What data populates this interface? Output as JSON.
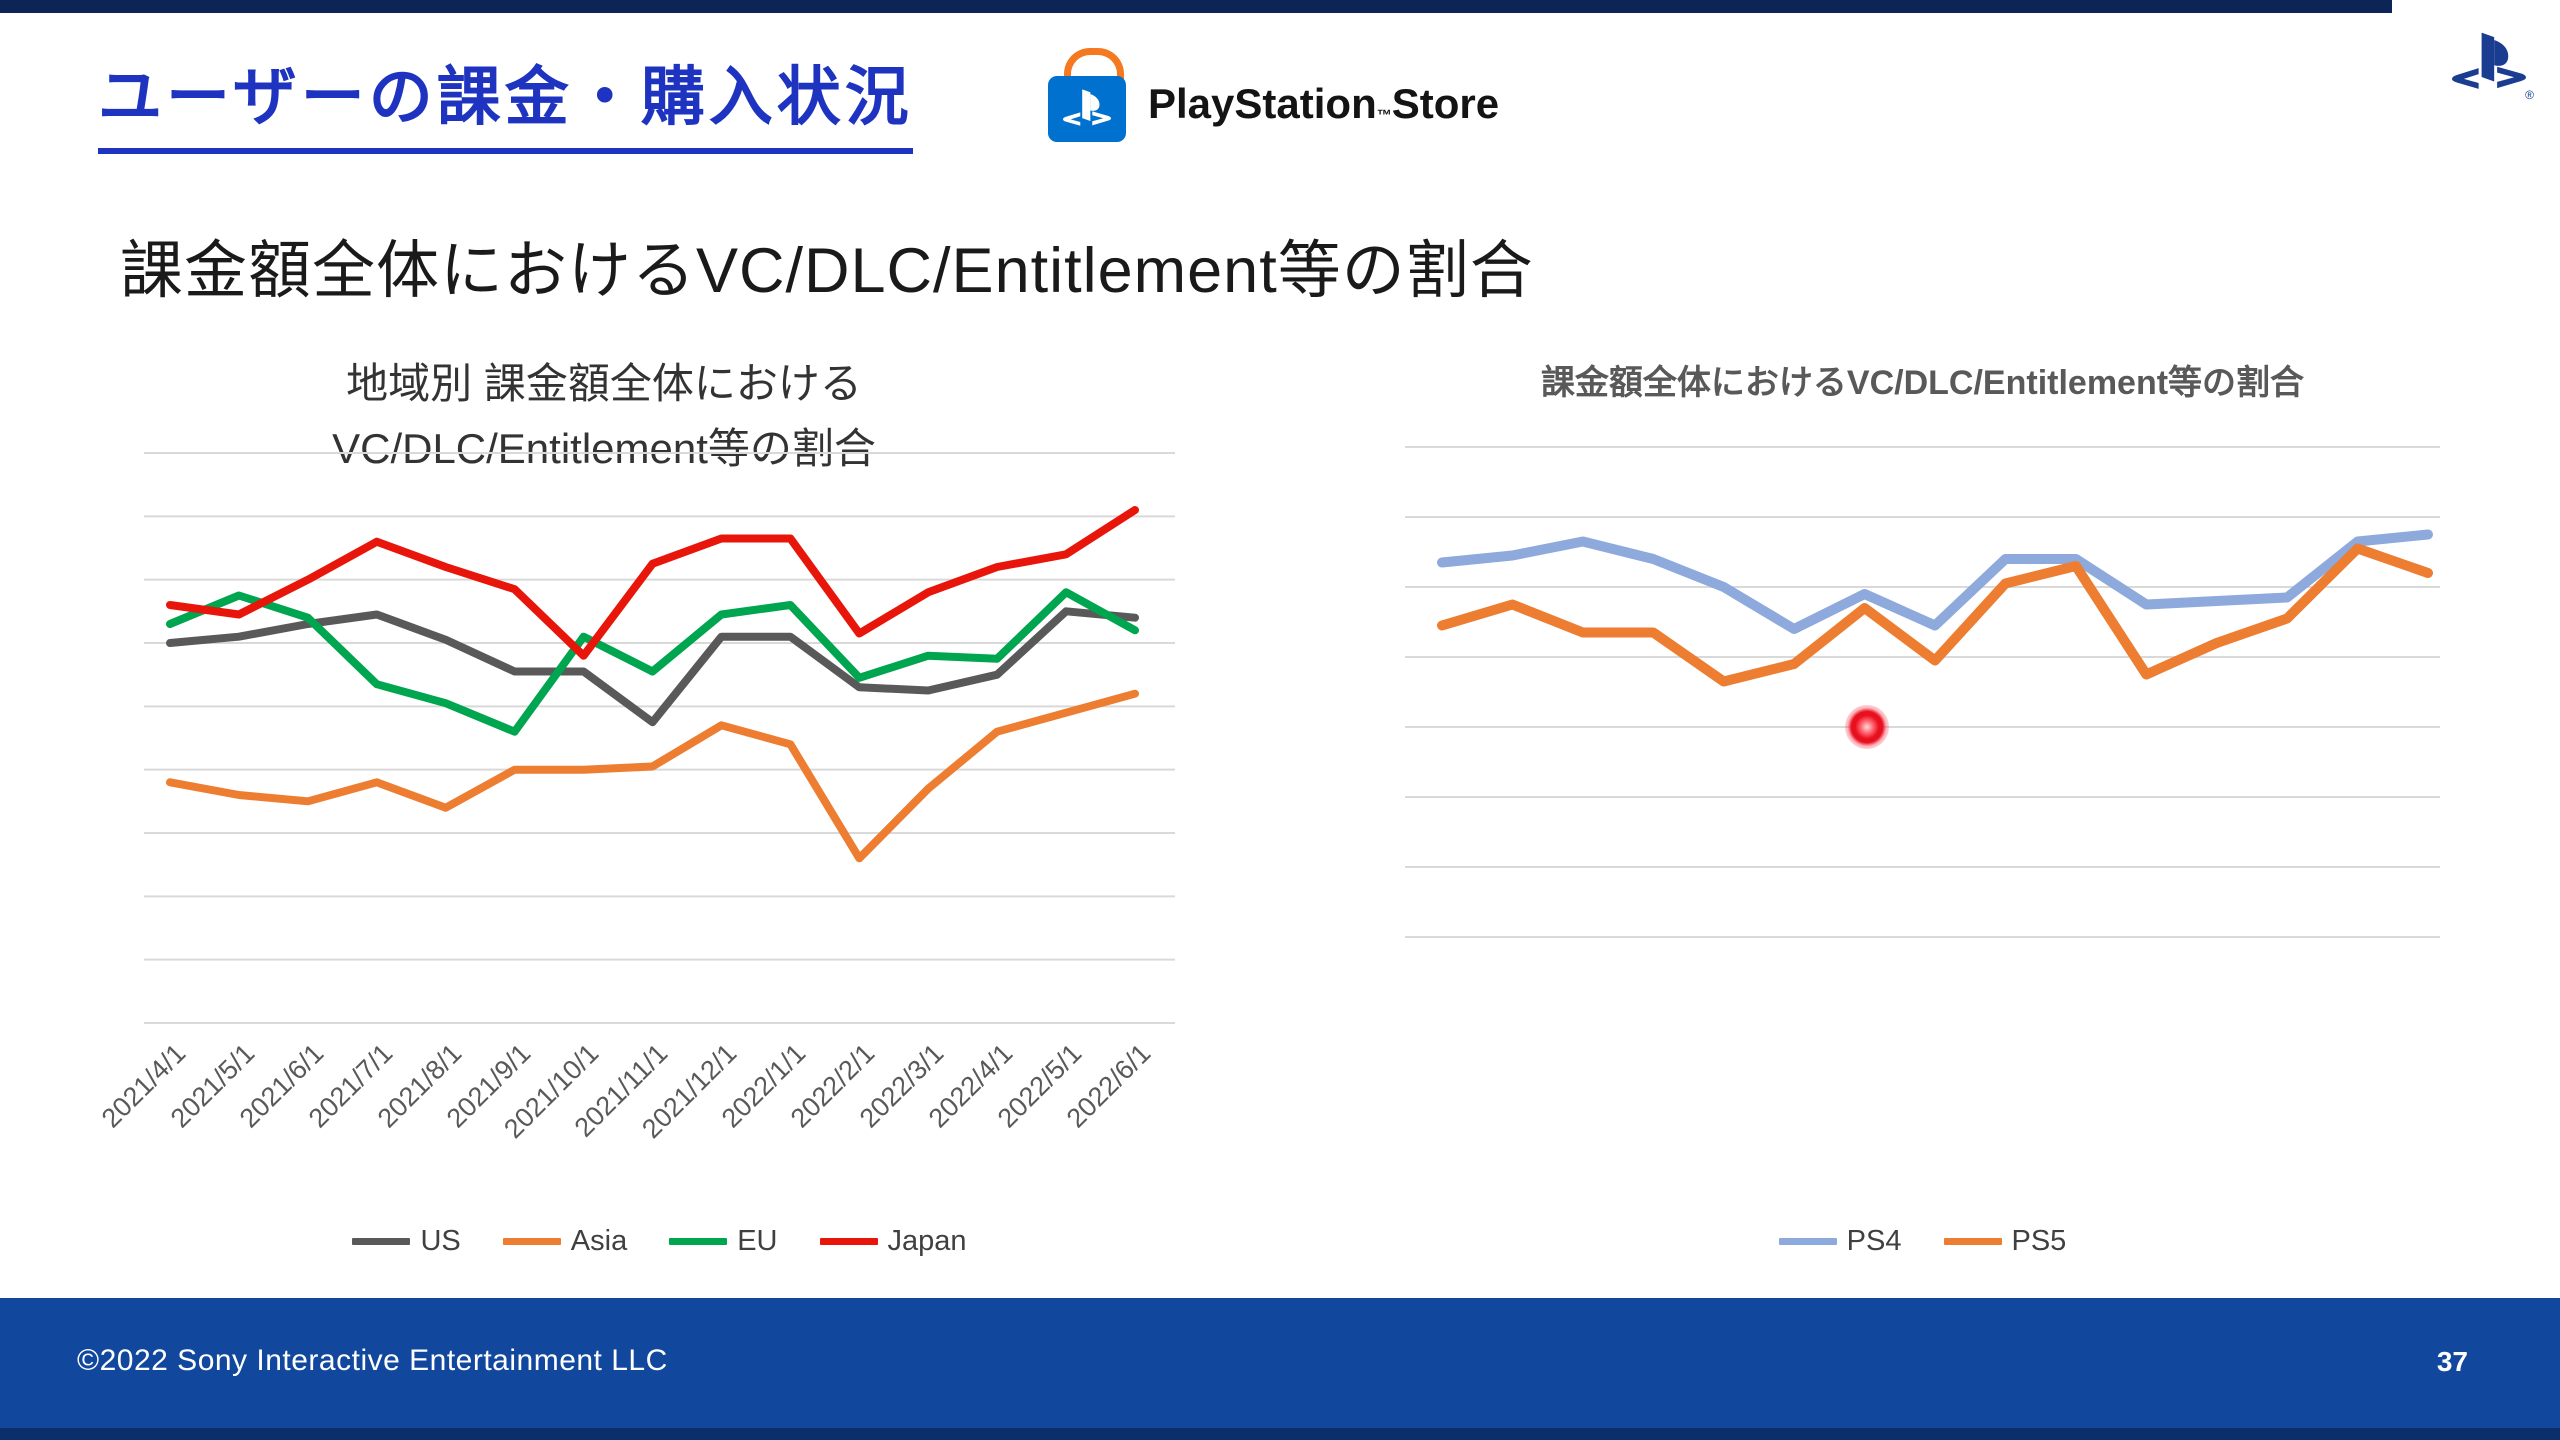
{
  "slide": {
    "title": "ユーザーの課金・購入状況",
    "heading": "課金額全体におけるVC/DLC/Entitlement等の割合",
    "store_logo": {
      "name": "PlayStation",
      "tm": "™",
      "suffix": "Store"
    }
  },
  "footer": {
    "copyright": "©2022 Sony Interactive Entertainment LLC",
    "page_number": "37"
  },
  "colors": {
    "title_blue": "#1e34c0",
    "footer_blue": "#11489d",
    "ps_navy": "#1b3d91",
    "store_bag_blue": "#0071ce",
    "store_handle_orange": "#f47920",
    "grid": "#d9d9d9",
    "laser_red": "#e8101f"
  },
  "chart_data": [
    {
      "type": "line",
      "title": "地域別 課金額全体における\nVC/DLC/Entitlement等の割合",
      "x_labels": [
        "2021/4/1",
        "2021/5/1",
        "2021/6/1",
        "2021/7/1",
        "2021/8/1",
        "2021/9/1",
        "2021/10/1",
        "2021/11/1",
        "2021/12/1",
        "2022/1/1",
        "2022/2/1",
        "2022/3/1",
        "2022/4/1",
        "2022/5/1",
        "2022/6/1"
      ],
      "x_labels_visible": true,
      "ylabel": "",
      "ylim": [
        0,
        90
      ],
      "grid_step": 10,
      "grid": "on",
      "legend_position": "bottom",
      "note": "y-axis has no tick labels; values are relative estimates (1 gridline = 10 units)",
      "series": [
        {
          "name": "US",
          "color": "#595959",
          "values": [
            60,
            61,
            63,
            64.5,
            60.5,
            55.5,
            55.5,
            47.5,
            61,
            61,
            53,
            52.5,
            55,
            65,
            64
          ]
        },
        {
          "name": "Asia",
          "color": "#ed7d31",
          "values": [
            38,
            36,
            35,
            38,
            34,
            40,
            40,
            40.5,
            47,
            44,
            26,
            37,
            46,
            49,
            52
          ]
        },
        {
          "name": "EU",
          "color": "#00a550",
          "values": [
            63,
            67.5,
            64,
            53.5,
            50.5,
            46,
            61,
            55.5,
            64.5,
            66,
            54.5,
            58,
            57.5,
            68,
            62
          ]
        },
        {
          "name": "Japan",
          "color": "#e8150a",
          "values": [
            66,
            64.5,
            70,
            76,
            72,
            68.5,
            58,
            72.5,
            76.5,
            76.5,
            61.5,
            68,
            72,
            74,
            81
          ]
        }
      ]
    },
    {
      "type": "line",
      "title": "課金額全体におけるVC/DLC/Entitlement等の割合",
      "x_labels": null,
      "x_labels_visible": false,
      "ylabel": "",
      "ylim": [
        0,
        70
      ],
      "grid_step": 10,
      "grid": "on",
      "legend_position": "bottom",
      "note": "15 monthly points (2021/4 - 2022/6), axis labels not shown; 1 gridline = 10 units",
      "series": [
        {
          "name": "PS4",
          "color": "#8ea9db",
          "values": [
            53.5,
            54.5,
            56.5,
            54,
            50,
            44,
            49,
            44.5,
            54,
            54,
            47.5,
            48,
            48.5,
            56.5,
            57.5
          ]
        },
        {
          "name": "PS5",
          "color": "#ed7d31",
          "values": [
            44.5,
            47.5,
            43.5,
            43.5,
            36.5,
            39,
            47,
            39.5,
            50.5,
            53,
            37.5,
            42,
            45.5,
            55.5,
            52
          ]
        }
      ]
    }
  ]
}
